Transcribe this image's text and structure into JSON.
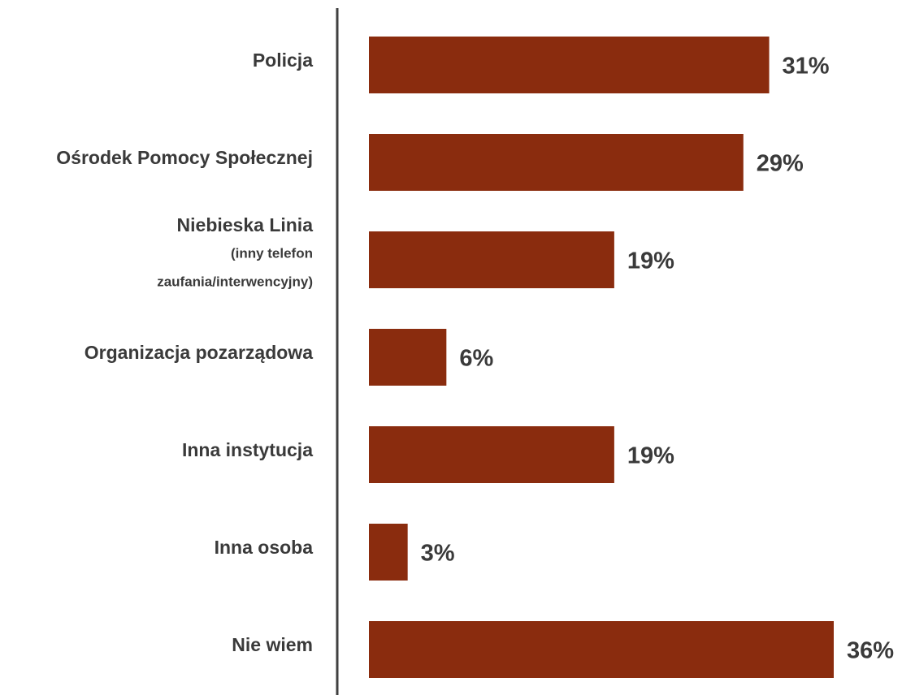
{
  "chart_data": {
    "type": "bar",
    "orientation": "horizontal",
    "categories": [
      "Policja",
      "Ośrodek Pomocy Społecznej",
      [
        "Niebieska Linia",
        "(inny telefon",
        "zaufania/interwencyjny)"
      ],
      "Organizacja pozarządowa",
      "Inna instytucja",
      "Inna osoba",
      "Nie wiem"
    ],
    "values": [
      31,
      29,
      19,
      6,
      19,
      3,
      36
    ],
    "value_labels": [
      "31%",
      "29%",
      "19%",
      "6%",
      "19%",
      "3%",
      "36%"
    ],
    "color": "#8a2c0e"
  }
}
